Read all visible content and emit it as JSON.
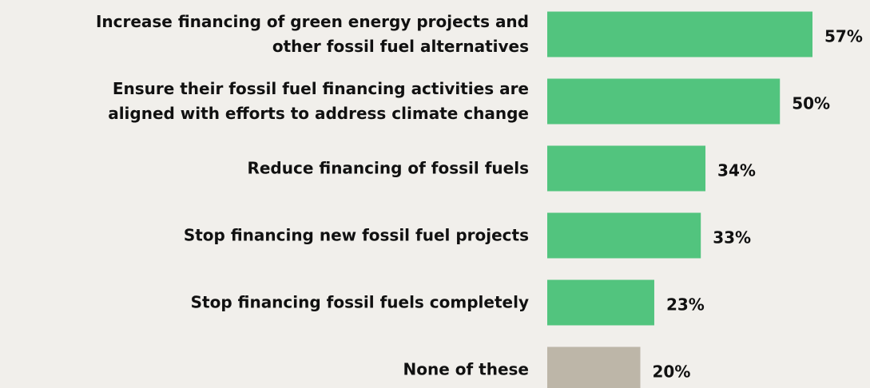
{
  "chart_data": {
    "type": "barh",
    "categories": [
      "Increase financing of green energy projects and\nother fossil fuel alternatives",
      "Ensure their fossil fuel financing activities are\naligned with efforts to address climate change",
      "Reduce financing of fossil fuels",
      "Stop financing new fossil fuel projects",
      "Stop financing fossil fuels completely",
      "None of these"
    ],
    "values": [
      57,
      50,
      34,
      33,
      23,
      20
    ],
    "value_labels": [
      "57%",
      "50%",
      "34%",
      "33%",
      "23%",
      "20%"
    ],
    "colors": [
      "#52c47e",
      "#52c47e",
      "#52c47e",
      "#52c47e",
      "#52c47e",
      "#bdb6a8"
    ]
  }
}
